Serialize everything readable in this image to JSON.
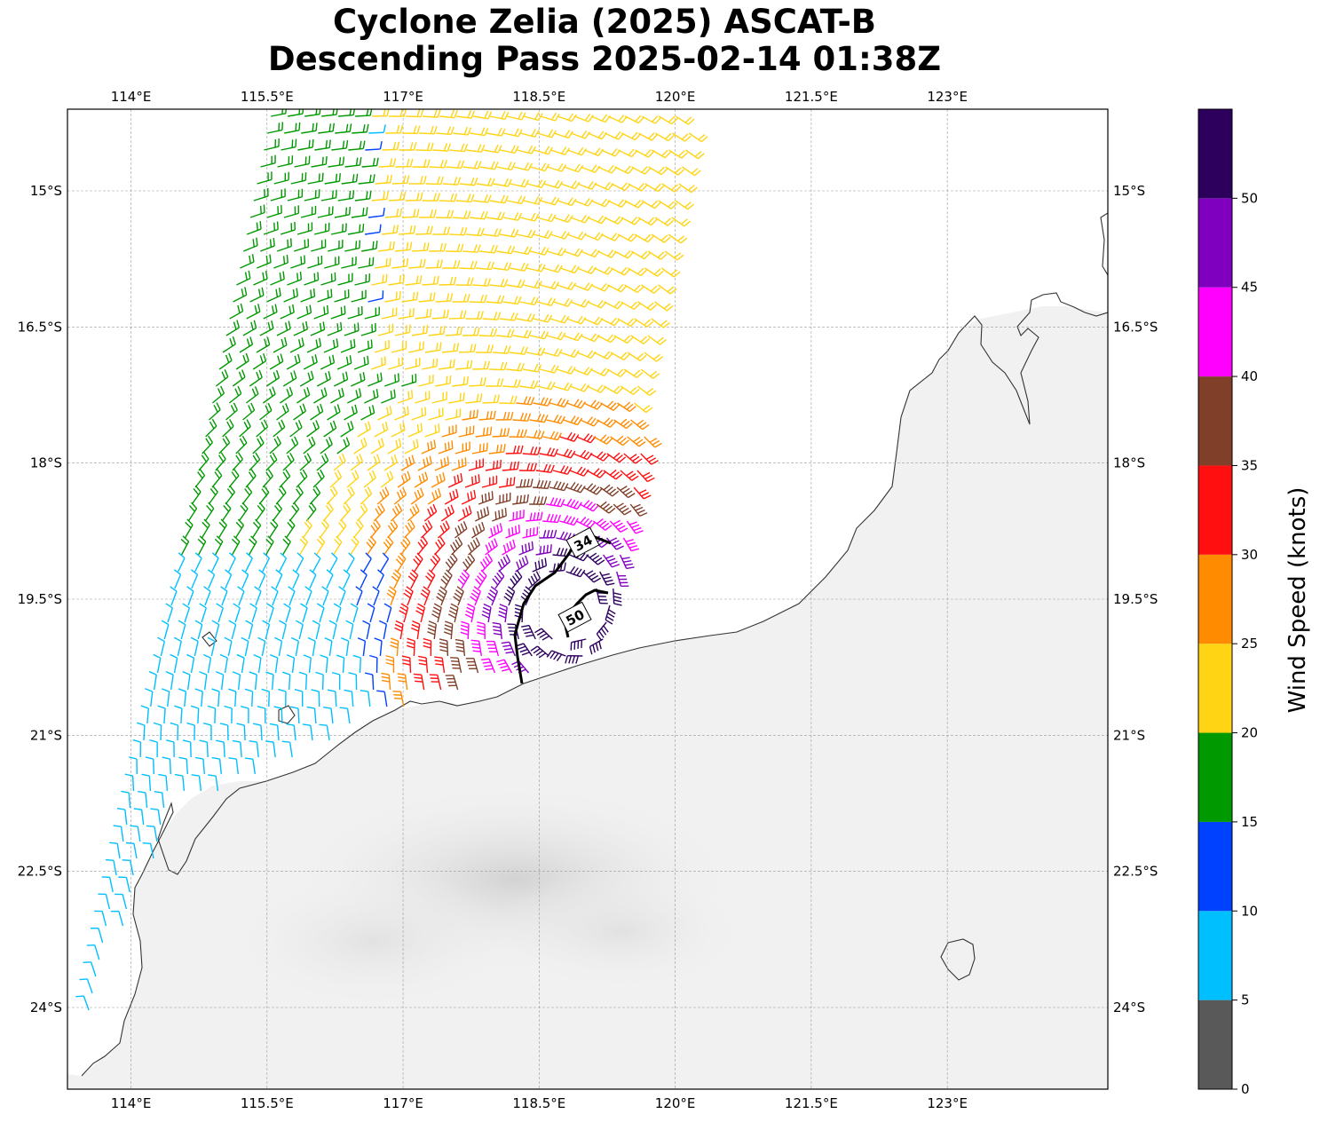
{
  "title": {
    "line1": "Cyclone Zelia (2025) ASCAT-B",
    "line2": "Descending Pass 2025-02-14 01:38Z"
  },
  "map": {
    "lon_range": [
      113.3,
      124.77
    ],
    "lat_range": [
      -14.1,
      -24.9
    ],
    "lon_ticks": [
      {
        "value": 114.0,
        "label": "114°E"
      },
      {
        "value": 115.5,
        "label": "115.5°E"
      },
      {
        "value": 117.0,
        "label": "117°E"
      },
      {
        "value": 118.5,
        "label": "118.5°E"
      },
      {
        "value": 120.0,
        "label": "120°E"
      },
      {
        "value": 121.5,
        "label": "121.5°E"
      },
      {
        "value": 123.0,
        "label": "123°E"
      }
    ],
    "lat_ticks": [
      {
        "value": -15.0,
        "label": "15°S"
      },
      {
        "value": -16.5,
        "label": "16.5°S"
      },
      {
        "value": -18.0,
        "label": "18°S"
      },
      {
        "value": -19.5,
        "label": "19.5°S"
      },
      {
        "value": -21.0,
        "label": "21°S"
      },
      {
        "value": -22.5,
        "label": "22.5°S"
      },
      {
        "value": -24.0,
        "label": "24°S"
      }
    ],
    "gridlines": true,
    "center": {
      "lon": 118.8,
      "lat": -19.6
    },
    "swath_edges": {
      "north_lat": -14.1,
      "west_lon_at_north": 115.5,
      "west_lon_at_south": 113.3,
      "east_lon_at_north": 120.2,
      "east_lon_at_south": 119.2
    },
    "contours": [
      {
        "label": "34",
        "knots": 34
      },
      {
        "label": "50",
        "knots": 50
      }
    ]
  },
  "colorbar": {
    "title": "Wind Speed (knots)",
    "min": 0,
    "max": 55,
    "bins": [
      {
        "low": 0,
        "high": 5,
        "color": "#595959"
      },
      {
        "low": 5,
        "high": 10,
        "color": "#00bfff"
      },
      {
        "low": 10,
        "high": 15,
        "color": "#0040ff"
      },
      {
        "low": 15,
        "high": 20,
        "color": "#009900"
      },
      {
        "low": 20,
        "high": 25,
        "color": "#ffd414"
      },
      {
        "low": 25,
        "high": 30,
        "color": "#ff8c00"
      },
      {
        "low": 30,
        "high": 35,
        "color": "#ff0f0f"
      },
      {
        "low": 35,
        "high": 40,
        "color": "#803f29"
      },
      {
        "low": 40,
        "high": 45,
        "color": "#ff00ff"
      },
      {
        "low": 45,
        "high": 50,
        "color": "#8000bf"
      },
      {
        "low": 50,
        "high": 55,
        "color": "#2e005e"
      }
    ],
    "tick_labels": [
      "0",
      "5",
      "10",
      "15",
      "20",
      "25",
      "30",
      "35",
      "40",
      "45",
      "50"
    ]
  }
}
